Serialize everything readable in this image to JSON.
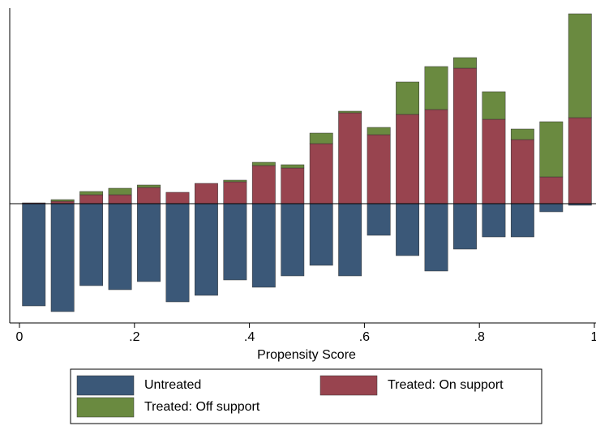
{
  "chart_data": {
    "type": "histogram",
    "xlabel": "Propensity Score",
    "bins": [
      0,
      0.05,
      0.1,
      0.15,
      0.2,
      0.25,
      0.3,
      0.35,
      0.4,
      0.45,
      0.5,
      0.55,
      0.6,
      0.65,
      0.7,
      0.75,
      0.8,
      0.85,
      0.9,
      0.95,
      1
    ],
    "series": [
      {
        "name": "Untreated",
        "color": "#3b5878",
        "values": [
          -12.6,
          -13.3,
          -10.1,
          -10.6,
          -9.6,
          -12.1,
          -11.3,
          -9.4,
          -10.3,
          -8.9,
          -7.6,
          -8.9,
          -3.9,
          -6.4,
          -8.3,
          -5.6,
          -4.1,
          -4.1,
          -1.0,
          -0.2
        ]
      },
      {
        "name": "Treated: On support",
        "color": "#98444f",
        "values": [
          0.1,
          0.3,
          1.1,
          1.1,
          2.0,
          1.4,
          2.5,
          2.7,
          4.7,
          4.4,
          7.4,
          11.2,
          8.5,
          11.0,
          11.6,
          16.7,
          10.4,
          7.9,
          3.3,
          10.6
        ]
      },
      {
        "name": "Treated: Off support",
        "color": "#6a8a40",
        "values": [
          0,
          0.2,
          0.4,
          0.8,
          0.3,
          0,
          0,
          0.2,
          0.4,
          0.4,
          1.3,
          0.2,
          0.9,
          4.0,
          5.3,
          1.3,
          3.4,
          1.3,
          6.8,
          12.8
        ]
      }
    ],
    "xlim": [
      0,
      1
    ],
    "xticks": [
      0,
      {
        "value": 0.2,
        "label": ".2"
      },
      {
        "value": 0.4,
        "label": ".4"
      },
      {
        "value": 0.6,
        "label": ".6"
      },
      {
        "value": 0.8,
        "label": ".8"
      },
      1
    ],
    "ylim": [
      -14.7,
      24.1
    ]
  }
}
